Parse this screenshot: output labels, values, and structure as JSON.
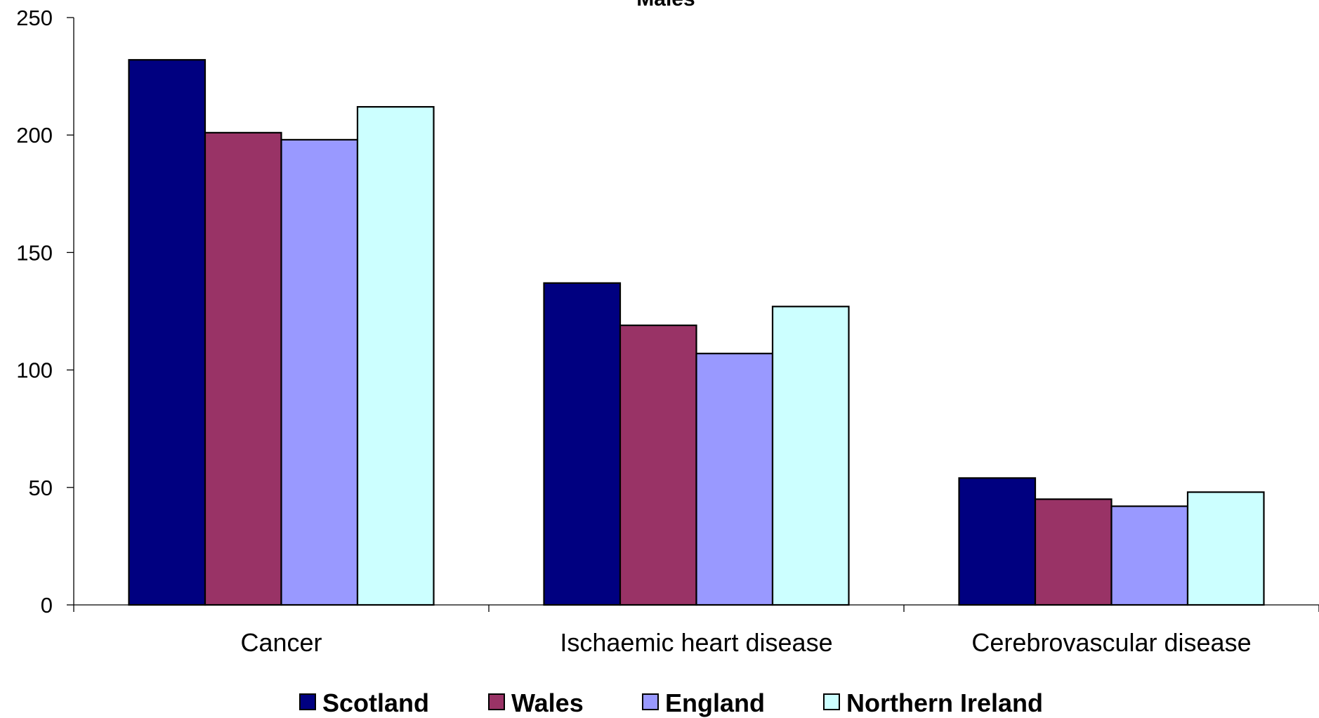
{
  "chart_data": {
    "type": "bar",
    "title": "Males",
    "categories": [
      "Cancer",
      "Ischaemic heart disease",
      "Cerebrovascular disease"
    ],
    "series": [
      {
        "name": "Scotland",
        "color": "#000080",
        "values": [
          232,
          137,
          54
        ]
      },
      {
        "name": "Wales",
        "color": "#993366",
        "values": [
          201,
          119,
          45
        ]
      },
      {
        "name": "England",
        "color": "#9999ff",
        "values": [
          198,
          107,
          42
        ]
      },
      {
        "name": "Northern Ireland",
        "color": "#ccffff",
        "values": [
          212,
          127,
          48
        ]
      }
    ],
    "ylim": [
      0,
      250
    ],
    "yticks": [
      0,
      50,
      100,
      150,
      200,
      250
    ],
    "xlabel": "",
    "ylabel": "",
    "grid": false,
    "legend_position": "bottom"
  }
}
